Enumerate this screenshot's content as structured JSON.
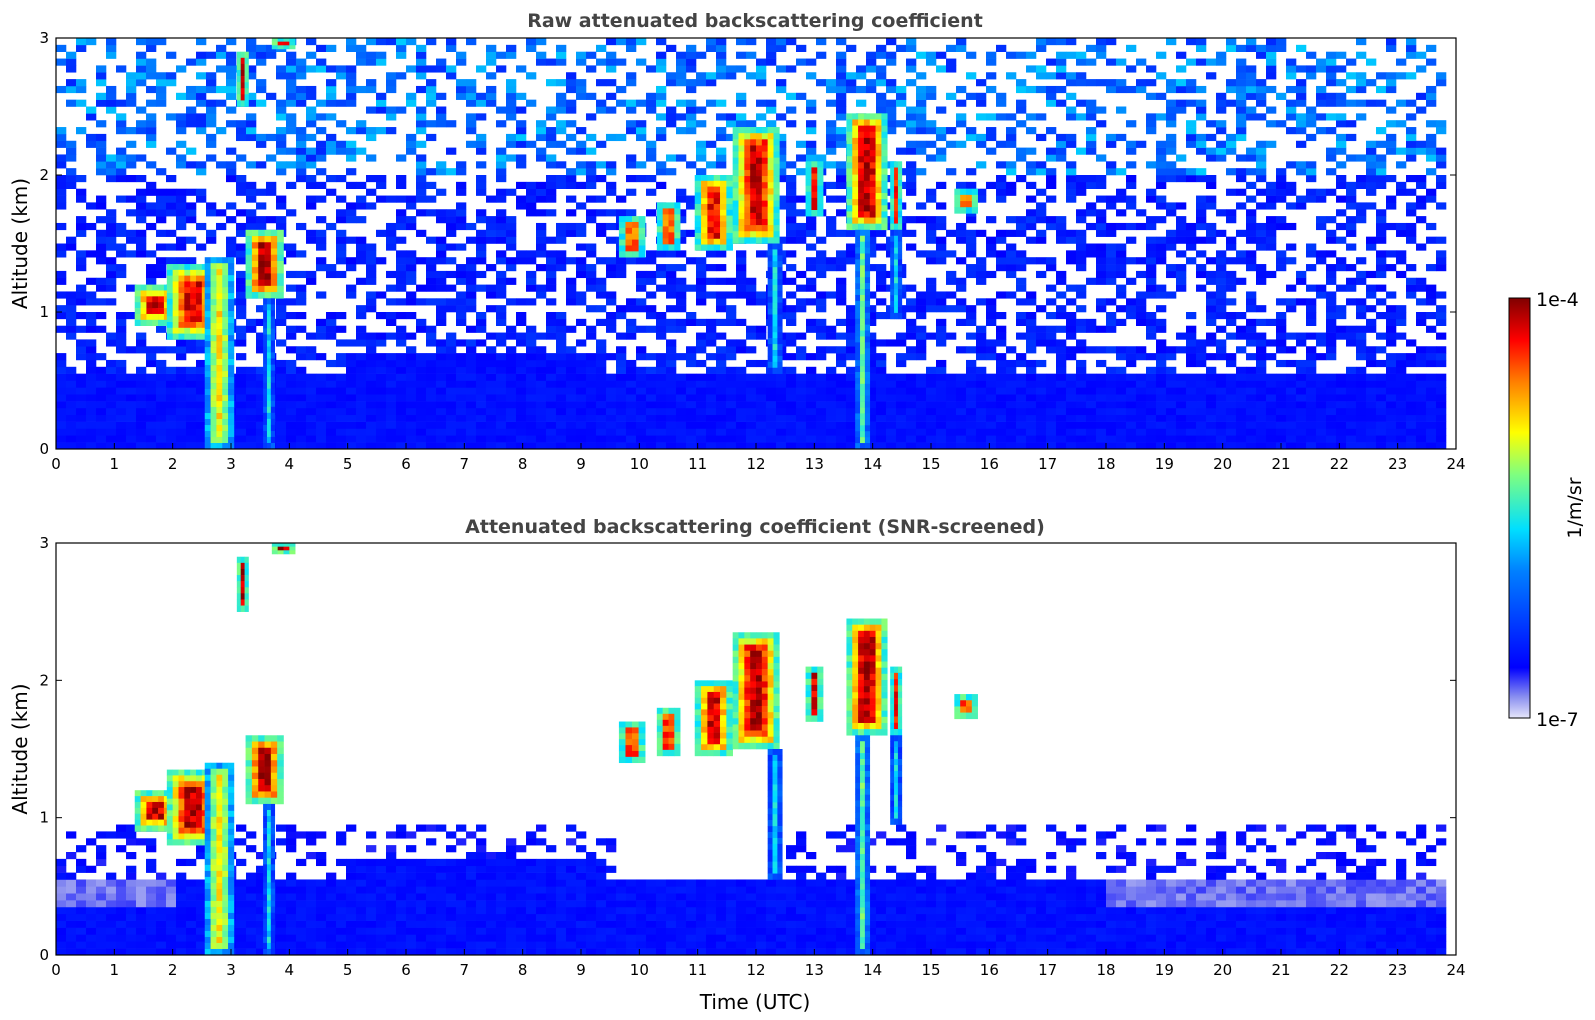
{
  "chart_data": [
    {
      "type": "heatmap",
      "title": "Raw attenuated backscattering coefficient",
      "xlabel": "",
      "ylabel": "Altitude (km)",
      "xlim": [
        0,
        24
      ],
      "ylim": [
        0,
        3
      ],
      "x_ticks": [
        "0",
        "1",
        "2",
        "3",
        "4",
        "5",
        "6",
        "7",
        "8",
        "9",
        "10",
        "11",
        "12",
        "13",
        "14",
        "15",
        "16",
        "17",
        "18",
        "19",
        "20",
        "21",
        "22",
        "23",
        "24"
      ],
      "y_ticks": [
        "0",
        "1",
        "2",
        "3"
      ],
      "screened": false,
      "features": [
        {
          "t": [
            1.35,
            2.05
          ],
          "alt": [
            0.9,
            1.2
          ],
          "level": 0.95
        },
        {
          "t": [
            1.9,
            2.8
          ],
          "alt": [
            0.8,
            1.35
          ],
          "level": 0.92
        },
        {
          "t": [
            2.55,
            3.05
          ],
          "alt": [
            0.0,
            1.4
          ],
          "level": 0.7
        },
        {
          "t": [
            3.1,
            3.3
          ],
          "alt": [
            2.5,
            2.9
          ],
          "level": 0.95
        },
        {
          "t": [
            3.25,
            3.9
          ],
          "alt": [
            1.1,
            1.6
          ],
          "level": 0.96
        },
        {
          "t": [
            3.55,
            3.75
          ],
          "alt": [
            0.0,
            1.1
          ],
          "level": 0.45
        },
        {
          "t": [
            3.7,
            4.1
          ],
          "alt": [
            2.92,
            3.0
          ],
          "level": 0.95
        },
        {
          "t": [
            9.65,
            10.1
          ],
          "alt": [
            1.4,
            1.7
          ],
          "level": 0.9
        },
        {
          "t": [
            10.3,
            10.7
          ],
          "alt": [
            1.45,
            1.8
          ],
          "level": 0.9
        },
        {
          "t": [
            10.95,
            11.6
          ],
          "alt": [
            1.45,
            2.0
          ],
          "level": 0.9
        },
        {
          "t": [
            11.6,
            12.4
          ],
          "alt": [
            1.5,
            2.35
          ],
          "level": 0.93
        },
        {
          "t": [
            12.2,
            12.45
          ],
          "alt": [
            0.55,
            1.5
          ],
          "level": 0.45
        },
        {
          "t": [
            12.85,
            13.15
          ],
          "alt": [
            1.7,
            2.1
          ],
          "level": 0.9
        },
        {
          "t": [
            13.55,
            14.25
          ],
          "alt": [
            1.6,
            2.45
          ],
          "level": 0.95
        },
        {
          "t": [
            13.7,
            13.95
          ],
          "alt": [
            0.0,
            1.6
          ],
          "level": 0.55
        },
        {
          "t": [
            14.3,
            14.5
          ],
          "alt": [
            1.6,
            2.1
          ],
          "level": 0.88
        },
        {
          "t": [
            14.3,
            14.5
          ],
          "alt": [
            0.95,
            1.6
          ],
          "level": 0.45
        },
        {
          "t": [
            15.4,
            15.8
          ],
          "alt": [
            1.72,
            1.9
          ],
          "level": 0.9
        }
      ]
    },
    {
      "type": "heatmap",
      "title": "Attenuated backscattering coefficient (SNR-screened)",
      "xlabel": "Time (UTC)",
      "ylabel": "Altitude (km)",
      "xlim": [
        0,
        24
      ],
      "ylim": [
        0,
        3
      ],
      "x_ticks": [
        "0",
        "1",
        "2",
        "3",
        "4",
        "5",
        "6",
        "7",
        "8",
        "9",
        "10",
        "11",
        "12",
        "13",
        "14",
        "15",
        "16",
        "17",
        "18",
        "19",
        "20",
        "21",
        "22",
        "23",
        "24"
      ],
      "y_ticks": [
        "0",
        "1",
        "2",
        "3"
      ],
      "screened": true,
      "features": [
        {
          "t": [
            1.35,
            2.05
          ],
          "alt": [
            0.9,
            1.2
          ],
          "level": 0.97
        },
        {
          "t": [
            1.9,
            2.8
          ],
          "alt": [
            0.8,
            1.35
          ],
          "level": 0.95
        },
        {
          "t": [
            2.55,
            3.05
          ],
          "alt": [
            0.0,
            1.4
          ],
          "level": 0.7
        },
        {
          "t": [
            3.1,
            3.3
          ],
          "alt": [
            2.5,
            2.9
          ],
          "level": 0.95
        },
        {
          "t": [
            3.25,
            3.9
          ],
          "alt": [
            1.1,
            1.6
          ],
          "level": 0.97
        },
        {
          "t": [
            3.55,
            3.75
          ],
          "alt": [
            0.0,
            1.1
          ],
          "level": 0.45
        },
        {
          "t": [
            3.7,
            4.1
          ],
          "alt": [
            2.92,
            3.0
          ],
          "level": 0.97
        },
        {
          "t": [
            9.65,
            10.1
          ],
          "alt": [
            1.4,
            1.7
          ],
          "level": 0.93
        },
        {
          "t": [
            10.3,
            10.7
          ],
          "alt": [
            1.45,
            1.8
          ],
          "level": 0.93
        },
        {
          "t": [
            10.95,
            11.6
          ],
          "alt": [
            1.45,
            2.0
          ],
          "level": 0.93
        },
        {
          "t": [
            11.6,
            12.4
          ],
          "alt": [
            1.5,
            2.35
          ],
          "level": 0.95
        },
        {
          "t": [
            12.2,
            12.45
          ],
          "alt": [
            0.55,
            1.5
          ],
          "level": 0.45
        },
        {
          "t": [
            12.85,
            13.15
          ],
          "alt": [
            1.7,
            2.1
          ],
          "level": 0.93
        },
        {
          "t": [
            13.55,
            14.25
          ],
          "alt": [
            1.6,
            2.45
          ],
          "level": 0.96
        },
        {
          "t": [
            13.7,
            13.95
          ],
          "alt": [
            0.0,
            1.6
          ],
          "level": 0.55
        },
        {
          "t": [
            14.3,
            14.5
          ],
          "alt": [
            1.6,
            2.1
          ],
          "level": 0.9
        },
        {
          "t": [
            14.3,
            14.5
          ],
          "alt": [
            0.95,
            1.6
          ],
          "level": 0.45
        },
        {
          "t": [
            15.4,
            15.8
          ],
          "alt": [
            1.72,
            1.9
          ],
          "level": 0.93
        }
      ]
    }
  ],
  "colorbar": {
    "colormap": "jet",
    "max_label": "1e-4",
    "min_label": "1e-7",
    "unit_label": "1/m/sr",
    "scale": "log"
  }
}
